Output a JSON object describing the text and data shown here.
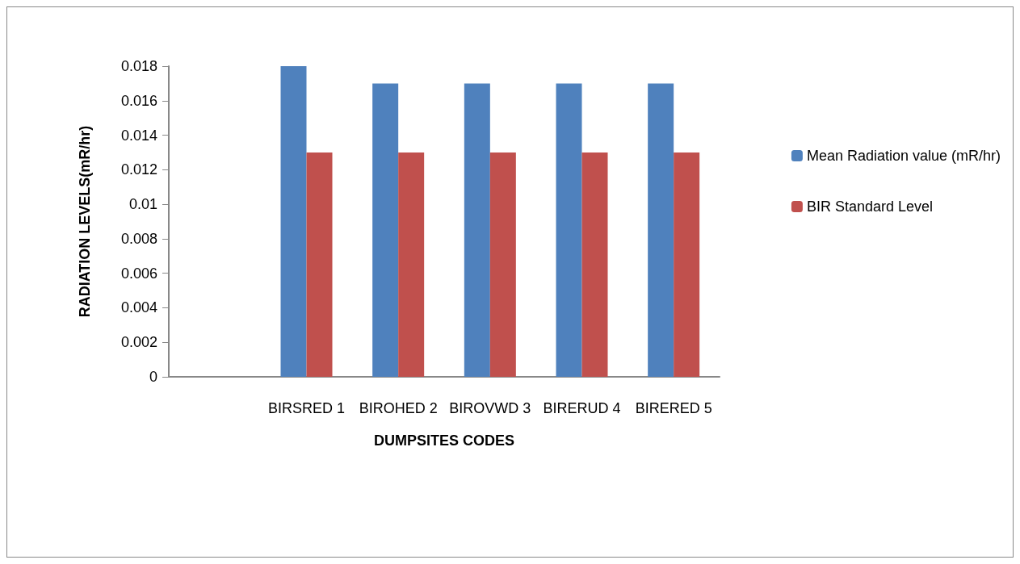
{
  "chart_data": {
    "type": "bar",
    "xlabel": "DUMPSITES CODES",
    "ylabel": "RADIATION LEVELS(mR/hr)",
    "categories": [
      null,
      "BIRSRED 1",
      "BIROHED 2",
      "BIROVWD 3",
      "BIRERUD 4",
      "BIRERED 5"
    ],
    "series": [
      {
        "name": "Mean Radiation value (mR/hr)",
        "color": "#4f81bd",
        "values": [
          null,
          0.018,
          0.017,
          0.017,
          0.017,
          0.017
        ]
      },
      {
        "name": "BIR Standard Level",
        "color": "#c0504d",
        "values": [
          null,
          0.013,
          0.013,
          0.013,
          0.013,
          0.013
        ]
      }
    ],
    "ylim": [
      0,
      0.018
    ],
    "yticks": [
      0,
      0.002,
      0.004,
      0.006,
      0.008,
      0.01,
      0.012,
      0.014,
      0.016,
      0.018
    ],
    "grid": false,
    "legend": "right"
  }
}
